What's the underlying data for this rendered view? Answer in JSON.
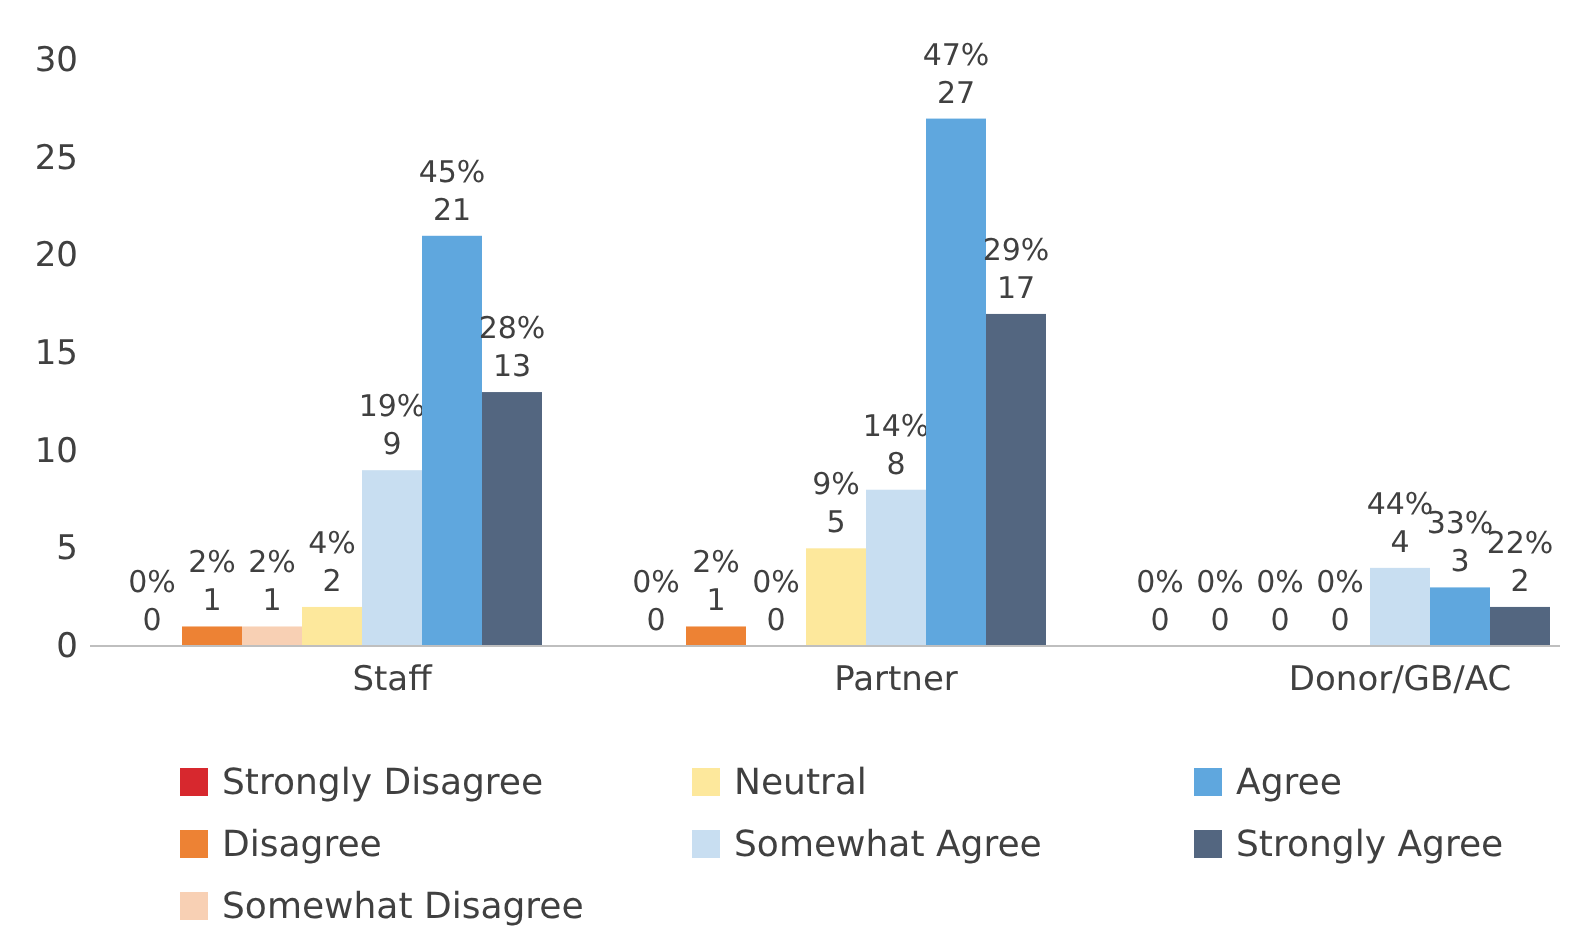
{
  "chart_data": {
    "type": "bar",
    "categories": [
      "Staff",
      "Partner",
      "Donor/GB/AC"
    ],
    "series": [
      {
        "name": "Strongly Disagree",
        "color": "#d7282e",
        "values": [
          0,
          0,
          0
        ],
        "value_labels": [
          "0%\n0",
          "0%\n0",
          "0%\n0"
        ]
      },
      {
        "name": "Disagree",
        "color": "#ed8234",
        "values": [
          1,
          1,
          0
        ],
        "value_labels": [
          "2%\n1",
          "2%\n1",
          "0%\n0"
        ]
      },
      {
        "name": "Somewhat Disagree",
        "color": "#f8d0b4",
        "values": [
          1,
          0,
          0
        ],
        "value_labels": [
          "2%\n1",
          "0%\n0",
          "0%\n0"
        ]
      },
      {
        "name": "Neutral",
        "color": "#fde89c",
        "values": [
          2,
          5,
          0
        ],
        "value_labels": [
          "4%\n2",
          "9%\n5",
          "0%\n0"
        ]
      },
      {
        "name": "Somewhat Agree",
        "color": "#c8def1",
        "values": [
          9,
          8,
          4
        ],
        "value_labels": [
          "19%\n9",
          "14%\n8",
          "44%\n4"
        ]
      },
      {
        "name": "Agree",
        "color": "#5fa7de",
        "values": [
          21,
          27,
          3
        ],
        "value_labels": [
          "45%\n21",
          "47%\n27",
          "33%\n3"
        ]
      },
      {
        "name": "Strongly Agree",
        "color": "#536680",
        "values": [
          13,
          17,
          2
        ],
        "value_labels": [
          "28%\n13",
          "29%\n17",
          "22%\n2"
        ]
      }
    ],
    "ylim": [
      0,
      30
    ],
    "yticks": [
      0,
      5,
      10,
      15,
      20,
      25,
      30
    ],
    "legend": "bottom"
  }
}
